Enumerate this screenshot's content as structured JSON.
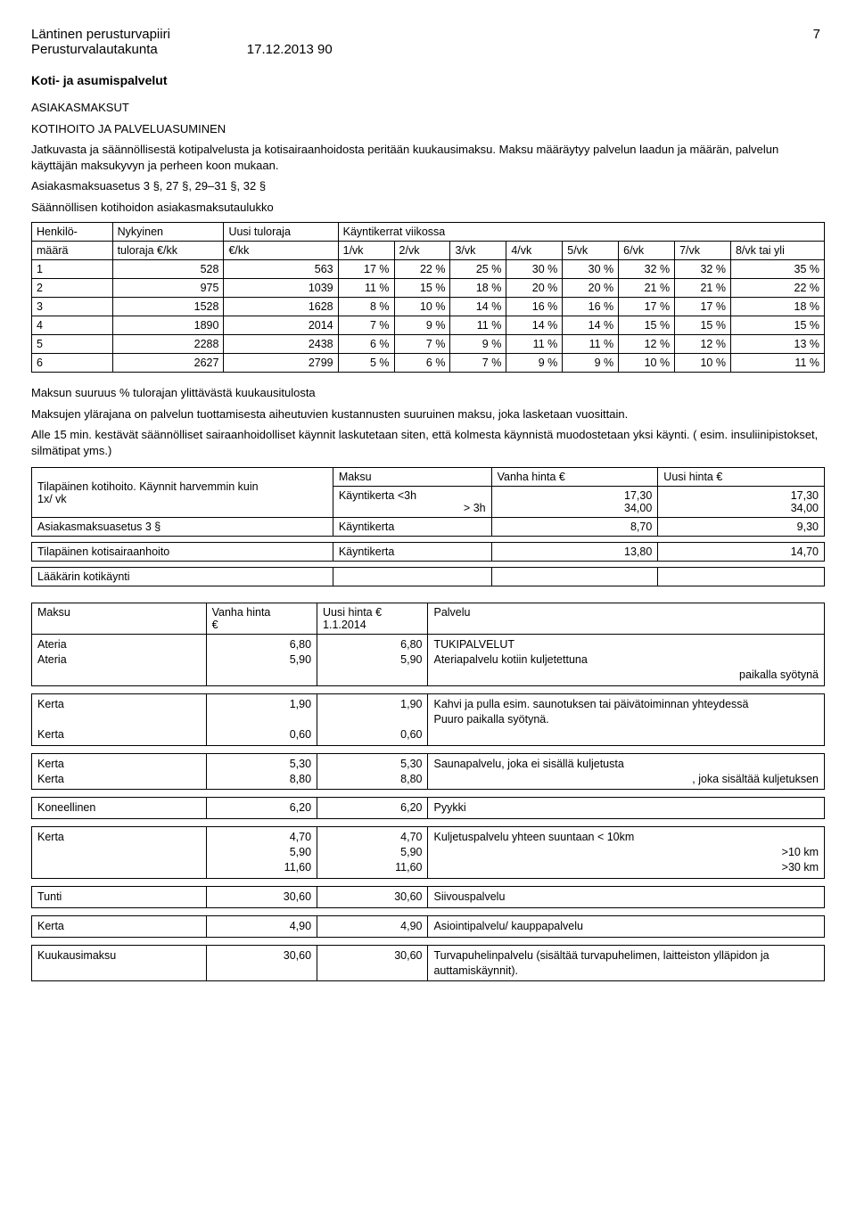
{
  "header": {
    "line1_left": "Läntinen perusturvapiiri",
    "page_number": "7",
    "line2_left": "Perusturvalautakunta",
    "line2_right": "17.12.2013 90"
  },
  "section_title": "Koti- ja asumispalvelut",
  "sub1": "ASIAKASMAKSUT",
  "sub2": "KOTIHOITO JA PALVELUASUMINEN",
  "para1": "Jatkuvasta ja säännöllisestä kotipalvelusta ja kotisairaanhoidosta peritään kuukausimaksu. Maksu määräytyy palvelun laadun ja määrän, palvelun käyttäjän maksukyvyn ja perheen koon mukaan.",
  "para2": "Asiakasmaksuasetus 3 §, 27 §, 29–31 §, 32 §",
  "para3": "Säännöllisen kotihoidon asiakasmaksutaulukko",
  "table1": {
    "head_r1_c1": "Henkilö-",
    "head_r1_c2": "Nykyinen",
    "head_r1_c3": "Uusi tuloraja",
    "head_r1_c4": "Käyntikerrat viikossa",
    "head_r2_c1": "määrä",
    "head_r2_c2": "tuloraja €/kk",
    "head_r2_c3": "€/kk",
    "head_r2": [
      "1/vk",
      "2/vk",
      "3/vk",
      "4/vk",
      "5/vk",
      "6/vk",
      "7/vk",
      "8/vk tai yli"
    ],
    "rows": [
      [
        "1",
        "528",
        "563",
        "17 %",
        "22 %",
        "25 %",
        "30 %",
        "30 %",
        "32 %",
        "32 %",
        "35 %"
      ],
      [
        "2",
        "975",
        "1039",
        "11 %",
        "15 %",
        "18 %",
        "20 %",
        "20 %",
        "21 %",
        "21 %",
        "22 %"
      ],
      [
        "3",
        "1528",
        "1628",
        "8 %",
        "10 %",
        "14 %",
        "16 %",
        "16 %",
        "17 %",
        "17 %",
        "18 %"
      ],
      [
        "4",
        "1890",
        "2014",
        "7 %",
        "9 %",
        "11 %",
        "14 %",
        "14 %",
        "15 %",
        "15 %",
        "15 %"
      ],
      [
        "5",
        "2288",
        "2438",
        "6 %",
        "7 %",
        "9 %",
        "11 %",
        "11 %",
        "12 %",
        "12 %",
        "13 %"
      ],
      [
        "6",
        "2627",
        "2799",
        "5 %",
        "6 %",
        "7 %",
        "9 %",
        "9 %",
        "10 %",
        "10 %",
        "11 %"
      ]
    ]
  },
  "para4a": "Maksun suuruus % tulorajan ylittävästä kuukausitulosta",
  "para4b": "Maksujen ylärajana on palvelun tuottamisesta aiheutuvien kustannusten suuruinen maksu, joka lasketaan vuosittain.",
  "para4c": "Alle 15 min. kestävät säännölliset sairaanhoidolliset käynnit laskutetaan siten, että kolmesta käynnistä muodostetaan yksi käynti. ( esim. insuliinipistokset, silmätipat yms.)",
  "table2": {
    "r1c1a": "Tilapäinen kotihoito. Käynnit harvemmin kuin",
    "r1c1b": "1x/ vk",
    "r1c2": "Maksu",
    "r1c3": "Vanha hinta €",
    "r1c4": "Uusi hinta €",
    "r2c2a": "Käyntikerta <3h",
    "r2c2b": "> 3h",
    "r2c3a": "17,30",
    "r2c3b": "34,00",
    "r2c4a": "17,30",
    "r2c4b": "34,00",
    "r3c1": "Asiakasmaksuasetus 3 §",
    "r3c2": "Käyntikerta",
    "r3c3": "8,70",
    "r3c4": "9,30",
    "r4c1": "Tilapäinen kotisairaanhoito",
    "r4c2": "Käyntikerta",
    "r4c3": "13,80",
    "r4c4": "14,70",
    "r5c1": "Lääkärin kotikäynti"
  },
  "table3": {
    "h1": "Maksu",
    "h2a": "Vanha hinta",
    "h2b": "€",
    "h3a": "Uusi hinta €",
    "h3b": "1.1.2014",
    "h4": "Palvelu",
    "rows": [
      {
        "c1": "Ateria\nAteria",
        "c2": "6,80\n5,90",
        "c3": "6,80\n5,90",
        "c4": "TUKIPALVELUT\nAteriapalvelu kotiin kuljetettuna\npaikalla syötynä",
        "align4": "mixed1"
      },
      {
        "c1": "Kerta\n\nKerta",
        "c2": "1,90\n\n0,60",
        "c3": "1,90\n\n0,60",
        "c4": "Kahvi ja pulla esim. saunotuksen tai päivätoiminnan yhteydessä\nPuuro paikalla syötynä."
      },
      {
        "c1": "Kerta\nKerta",
        "c2": "5,30\n8,80",
        "c3": "5,30\n8,80",
        "c4": "Saunapalvelu, joka ei sisällä kuljetusta\n, joka sisältää kuljetuksen",
        "align4": "mixed2"
      },
      {
        "c1": "Koneellinen",
        "c2": "6,20",
        "c3": "6,20",
        "c4": "Pyykki"
      },
      {
        "c1": "Kerta",
        "c2": "4,70\n5,90\n11,60",
        "c3": "4,70\n5,90\n11,60",
        "c4": "Kuljetuspalvelu yhteen suuntaan < 10km\n>10 km\n>30 km",
        "align4": "right23"
      },
      {
        "c1": "Tunti",
        "c2": "30,60",
        "c3": "30,60",
        "c4": "Siivouspalvelu"
      },
      {
        "c1": "Kerta",
        "c2": "4,90",
        "c3": "4,90",
        "c4": "Asiointipalvelu/ kauppapalvelu"
      },
      {
        "c1": "Kuukausimaksu",
        "c2": "30,60",
        "c3": "30,60",
        "c4": "Turvapuhelinpalvelu (sisältää turvapuhelimen, laitteiston ylläpidon ja auttamiskäynnit)."
      }
    ]
  }
}
